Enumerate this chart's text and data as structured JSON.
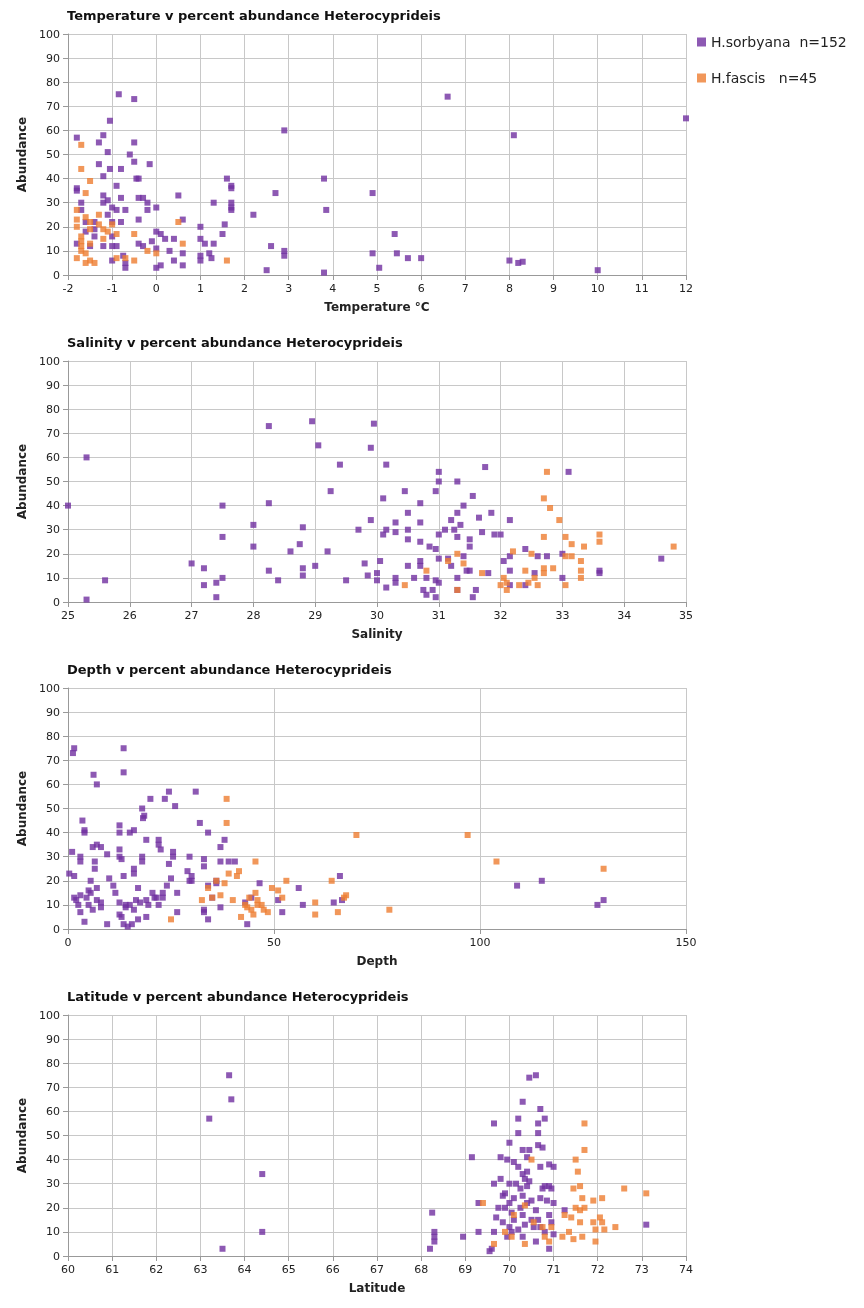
{
  "chart_data": [
    {
      "type": "scatter",
      "title": "Temperature v percent abundance Heterocyprideis",
      "xlabel": "Temperature °C",
      "ylabel": "Abundance",
      "xlim": [
        -2,
        12
      ],
      "xticks": [
        -2,
        -1,
        0,
        1,
        2,
        3,
        4,
        5,
        6,
        7,
        8,
        9,
        10,
        11,
        12
      ],
      "ylim": [
        0,
        100
      ],
      "yticks": [
        0,
        10,
        20,
        30,
        40,
        50,
        60,
        70,
        80,
        90,
        100
      ],
      "grid": true,
      "legend": "top right",
      "marker": "square",
      "series": [
        {
          "name": "H.sorbyana  n=152",
          "color": "#7030a0",
          "x": [
            -1.8,
            -1.8,
            -1.8,
            -1.8,
            -1.7,
            -1.7,
            -1.6,
            -1.6,
            -1.5,
            -1.4,
            -1.4,
            -1.4,
            -1.3,
            -1.3,
            -1.2,
            -1.2,
            -1.2,
            -1.2,
            -1.2,
            -1.1,
            -1.1,
            -1.1,
            -1.05,
            -1.05,
            -1,
            -1,
            -1,
            -1,
            -1,
            -0.9,
            -0.9,
            -0.9,
            -0.85,
            -0.8,
            -0.8,
            -0.8,
            -0.75,
            -0.7,
            -0.7,
            -0.7,
            -0.6,
            -0.5,
            -0.5,
            -0.5,
            -0.45,
            -0.4,
            -0.4,
            -0.4,
            -0.4,
            -0.3,
            -0.3,
            -0.2,
            -0.2,
            -0.15,
            -0.1,
            0,
            0,
            0,
            0,
            0.1,
            0.1,
            0.2,
            0.3,
            0.4,
            0.4,
            0.5,
            0.6,
            0.6,
            0.6,
            1,
            1,
            1,
            1,
            1.1,
            1.2,
            1.25,
            1.3,
            1.3,
            1.5,
            1.55,
            1.6,
            1.7,
            1.7,
            1.7,
            1.7,
            1.7,
            2.2,
            2.6,
            2.5,
            2.7,
            2.9,
            2.9,
            2.9,
            3.8,
            3.85,
            3.8,
            4.9,
            4.9,
            5.05,
            5.4,
            5.45,
            5.7,
            6,
            6.6,
            8,
            8.1,
            8.2,
            8.3,
            10,
            12
          ],
          "values": [
            57,
            36,
            35,
            13,
            30,
            27,
            22,
            18,
            12,
            22,
            19,
            16,
            55,
            46,
            58,
            41,
            33,
            30,
            12,
            51,
            31,
            25,
            64,
            44,
            28,
            22,
            16,
            12,
            6,
            37,
            27,
            12,
            75,
            32,
            44,
            22,
            8,
            27,
            5,
            3,
            50,
            73,
            55,
            47,
            40,
            40,
            32,
            23,
            13,
            32,
            12,
            30,
            27,
            46,
            14,
            28,
            18,
            11,
            3,
            17,
            4,
            15,
            10,
            15,
            6,
            33,
            23,
            4,
            9,
            20,
            15,
            8,
            6,
            13,
            9,
            7,
            30,
            13,
            17,
            21,
            40,
            37,
            36,
            30,
            28,
            27,
            25,
            12,
            2,
            34,
            60,
            10,
            8,
            40,
            27,
            1,
            34,
            9,
            3,
            17,
            9,
            7,
            7,
            74,
            6,
            58,
            5,
            5.5,
            2,
            65
          ]
        },
        {
          "name": "H.fascis   n=45",
          "color": "#ed7d31",
          "x": [
            -1.7,
            -1.7,
            -1.6,
            -1.5,
            -1.8,
            -1.8,
            -1.8,
            -1.7,
            -1.7,
            -1.7,
            -1.7,
            -1.8,
            -1.6,
            -1.6,
            -1.6,
            -1.5,
            -1.5,
            -1.5,
            -1.5,
            -1.4,
            -1.3,
            -1.3,
            -1.2,
            -1.2,
            -1.1,
            -1,
            -0.9,
            -0.9,
            -0.7,
            -0.5,
            -0.5,
            -0.2,
            0,
            0.5,
            0.6,
            1.6
          ],
          "values": [
            54,
            44,
            34,
            39,
            27,
            23,
            20,
            16,
            14,
            12,
            10,
            7,
            24,
            9,
            5,
            22,
            19,
            13,
            6,
            5,
            25,
            21,
            19,
            15,
            18,
            21,
            17,
            7,
            7,
            17,
            6,
            10,
            9,
            22,
            13,
            6
          ]
        }
      ]
    },
    {
      "type": "scatter",
      "title": "Salinity v percent abundance Heterocyprideis",
      "xlabel": "Salinity",
      "ylabel": "Abundance",
      "xlim": [
        25,
        35
      ],
      "xticks": [
        25,
        26,
        27,
        28,
        29,
        30,
        31,
        32,
        33,
        34,
        35
      ],
      "ylim": [
        0,
        100
      ],
      "yticks": [
        0,
        10,
        20,
        30,
        40,
        50,
        60,
        70,
        80,
        90,
        100
      ],
      "grid": true,
      "marker": "square",
      "series": [
        {
          "color": "#7030a0",
          "x": [
            25,
            25.3,
            25.3,
            25.6,
            27,
            27.2,
            27.2,
            27.4,
            27.4,
            27.5,
            27.5,
            27.5,
            28,
            28,
            28.25,
            28.25,
            28.25,
            28.4,
            28.6,
            28.75,
            28.8,
            28.8,
            28.8,
            28.95,
            29,
            29.05,
            29.2,
            29.25,
            29.4,
            29.5,
            29.7,
            29.8,
            29.85,
            29.9,
            29.9,
            29.95,
            30,
            30,
            30.05,
            30.1,
            30.1,
            30.15,
            30.15,
            30.15,
            30.3,
            30.3,
            30.3,
            30.3,
            30.45,
            30.5,
            30.5,
            30.5,
            30.5,
            30.6,
            30.7,
            30.7,
            30.7,
            30.7,
            30.7,
            30.75,
            30.8,
            30.8,
            30.85,
            30.9,
            30.95,
            30.95,
            30.95,
            30.95,
            31,
            31,
            31,
            31,
            31,
            31.1,
            31.15,
            31.2,
            31.2,
            31.25,
            31.3,
            31.3,
            31.3,
            31.3,
            31.3,
            31.35,
            31.4,
            31.4,
            31.45,
            31.5,
            31.5,
            31.5,
            31.55,
            31.55,
            31.6,
            31.65,
            31.7,
            31.75,
            31.8,
            31.85,
            31.9,
            32,
            32.05,
            32.15,
            32.15,
            32.15,
            32.15,
            32.4,
            32.4,
            32.55,
            32.6,
            32.75,
            33,
            33,
            33.1,
            33.6,
            33.6,
            34.6
          ],
          "values": [
            40,
            60,
            1,
            9,
            16,
            14,
            7,
            8,
            2,
            40,
            27,
            10,
            32,
            23,
            73,
            41,
            13,
            9,
            21,
            24,
            31,
            14,
            11,
            75,
            15,
            65,
            21,
            46,
            57,
            9,
            30,
            16,
            11,
            64,
            34,
            74,
            12,
            9,
            17,
            43,
            28,
            57,
            30,
            6,
            33,
            29,
            10,
            8,
            46,
            37,
            30,
            26,
            15,
            10,
            41,
            33,
            25,
            17,
            15,
            5,
            10,
            3,
            23,
            5,
            46,
            22,
            9,
            2,
            28,
            18,
            8,
            54,
            50,
            30,
            18,
            34,
            15,
            30,
            50,
            37,
            27,
            10,
            5,
            32,
            40,
            19,
            13,
            26,
            23,
            13,
            44,
            2,
            5,
            35,
            29,
            56,
            12,
            37,
            28,
            28,
            17,
            34,
            19,
            13,
            7,
            22,
            7,
            12,
            19,
            19,
            20,
            10,
            54,
            13,
            12,
            18
          ]
        },
        {
          "color": "#ed7d31",
          "x": [
            30.45,
            30.8,
            31.15,
            31.3,
            31.3,
            31.4,
            31.7,
            32,
            32.05,
            32.1,
            32.1,
            32.2,
            32.3,
            32.4,
            32.45,
            32.5,
            32.55,
            32.6,
            32.7,
            32.7,
            32.7,
            32.7,
            32.75,
            32.8,
            32.85,
            32.95,
            33.05,
            33.05,
            33.05,
            33.15,
            33.15,
            33.3,
            33.3,
            33.3,
            33.35,
            33.6,
            33.6,
            34.8
          ],
          "values": [
            7,
            13,
            17,
            20,
            5,
            16,
            12,
            7,
            10,
            8,
            5,
            21,
            7,
            13,
            8,
            20,
            10,
            7,
            43,
            27,
            14,
            12,
            54,
            39,
            14,
            34,
            27,
            19,
            7,
            24,
            19,
            17,
            13,
            10,
            23,
            28,
            25,
            23
          ]
        }
      ]
    },
    {
      "type": "scatter",
      "title": "Depth v percent abundance Heterocyprideis",
      "xlabel": "Depth",
      "ylabel": "Abundance",
      "xlim": [
        0,
        150
      ],
      "xticks": [
        0,
        50,
        100,
        150
      ],
      "ylim": [
        0,
        100
      ],
      "yticks": [
        0,
        10,
        20,
        30,
        40,
        50,
        60,
        70,
        80,
        90,
        100
      ],
      "grid": true,
      "marker": "square",
      "series": [
        {
          "color": "#7030a0",
          "x": [
            0.3,
            1,
            1.2,
            1.5,
            1.5,
            1.5,
            2,
            2.5,
            3,
            3,
            3,
            3,
            3.5,
            4,
            4,
            4,
            4.5,
            5,
            5,
            5.5,
            5.5,
            6,
            6,
            6.2,
            6.5,
            6.5,
            7,
            7,
            7,
            7,
            8,
            8,
            8,
            9.5,
            9.5,
            10,
            11,
            11.5,
            12.5,
            12.5,
            12.5,
            12.5,
            12.5,
            12.5,
            13,
            13,
            13.5,
            13.5,
            13.5,
            13.5,
            14,
            14,
            14.5,
            15,
            15,
            15.5,
            16,
            16,
            16,
            16,
            16.5,
            17,
            17,
            17.5,
            18,
            18,
            18,
            18.2,
            18.5,
            19,
            19,
            19,
            19.5,
            20,
            20.5,
            21,
            21.5,
            22,
            22,
            22,
            22.5,
            23,
            23,
            23.5,
            24,
            24.5,
            24.5,
            25,
            25.5,
            25.5,
            26,
            26.5,
            26.5,
            29,
            29.5,
            29.5,
            30,
            30,
            31,
            32,
            33,
            33,
            33,
            33,
            34,
            34,
            34,
            35,
            36,
            36,
            37,
            37,
            37,
            38,
            39,
            40.5,
            43,
            43.5,
            44.5,
            46.5,
            51,
            52,
            56,
            57,
            64.5,
            66,
            66.5,
            109,
            115,
            128.5,
            130
          ],
          "values": [
            23,
            32,
            73,
            75,
            22,
            13,
            12,
            10,
            30,
            28,
            14,
            7,
            45,
            41,
            40,
            3,
            13,
            16,
            10,
            20,
            15,
            34,
            8,
            64,
            28,
            25,
            60,
            35,
            17,
            12,
            34,
            11,
            9,
            31,
            2,
            21,
            18,
            15,
            43,
            40,
            33,
            30,
            11,
            6,
            29,
            5,
            2,
            75,
            65,
            22,
            10,
            9,
            1,
            40,
            10,
            2,
            41,
            25,
            23,
            8,
            12,
            17,
            4,
            11,
            30,
            28,
            50,
            46,
            47,
            37,
            12,
            5,
            10,
            54,
            15,
            13,
            13,
            37,
            35,
            10,
            33,
            15,
            13,
            54,
            18,
            57,
            27,
            21,
            32,
            30,
            51,
            15,
            7,
            24,
            30,
            20,
            22,
            20,
            57,
            44,
            29,
            26,
            8,
            7,
            40,
            18,
            4,
            13,
            20,
            19,
            34,
            28,
            9,
            37,
            28,
            28,
            11,
            2,
            13,
            19,
            12,
            7,
            17,
            10,
            11,
            22,
            12,
            18,
            20,
            10,
            12
          ]
        },
        {
          "color": "#ed7d31",
          "x": [
            25,
            32.5,
            34,
            35,
            36,
            37,
            38,
            38.5,
            38.5,
            39,
            40,
            41,
            41.5,
            42,
            43,
            43.5,
            44,
            44.5,
            45,
            45.5,
            45.5,
            46,
            46,
            47,
            47.5,
            48.5,
            49.5,
            51,
            52,
            53,
            60,
            60,
            64,
            65.5,
            67,
            67.5,
            70,
            78,
            97,
            104,
            130
          ],
          "values": [
            4,
            12,
            17,
            13,
            20,
            14,
            19,
            54,
            44,
            23,
            12,
            22,
            24,
            5,
            10,
            9,
            13,
            8,
            6,
            28,
            15,
            12,
            10,
            10,
            8,
            7,
            17,
            16,
            13,
            20,
            11,
            6,
            20,
            7,
            13,
            14,
            39,
            8,
            39,
            28,
            25
          ]
        }
      ]
    },
    {
      "type": "scatter",
      "title": "Latitude v percent abundance Heterocyprideis",
      "xlabel": "Latitude",
      "ylabel": "Abundance",
      "xlim": [
        60,
        74
      ],
      "xticks": [
        60,
        61,
        62,
        63,
        64,
        65,
        66,
        67,
        68,
        69,
        70,
        71,
        72,
        73,
        74
      ],
      "ylim": [
        0,
        100
      ],
      "yticks": [
        0,
        10,
        20,
        30,
        40,
        50,
        60,
        70,
        80,
        90,
        100
      ],
      "grid": true,
      "marker": "square",
      "series": [
        {
          "color": "#7030a0",
          "x": [
            63.2,
            63.5,
            63.65,
            63.7,
            64.4,
            64.4,
            68.2,
            68.25,
            68.3,
            68.3,
            68.3,
            68.95,
            69.15,
            69.3,
            69.3,
            69.55,
            69.6,
            69.65,
            69.65,
            69.65,
            69.7,
            69.75,
            69.8,
            69.8,
            69.85,
            69.85,
            69.9,
            69.9,
            69.95,
            69.95,
            70,
            70,
            70,
            70,
            70.05,
            70.05,
            70.1,
            70.1,
            70.1,
            70.15,
            70.2,
            70.2,
            70.2,
            70.2,
            70.25,
            70.25,
            70.3,
            70.3,
            70.3,
            70.3,
            70.3,
            70.3,
            70.35,
            70.35,
            70.4,
            70.4,
            70.4,
            70.4,
            70.45,
            70.45,
            70.45,
            70.5,
            70.5,
            70.55,
            70.6,
            70.6,
            70.6,
            70.65,
            70.65,
            70.65,
            70.65,
            70.7,
            70.7,
            70.7,
            70.7,
            70.75,
            70.75,
            70.8,
            70.8,
            70.8,
            70.85,
            70.9,
            70.9,
            70.9,
            70.9,
            70.95,
            70.95,
            71,
            71,
            71,
            71.25,
            73.1
          ],
          "values": [
            57,
            3,
            75,
            65,
            34,
            10,
            3,
            18,
            10,
            8,
            6,
            8,
            41,
            22,
            10,
            2,
            3,
            55,
            30,
            10,
            16,
            20,
            41,
            32,
            25,
            14,
            26,
            20,
            40,
            8,
            47,
            30,
            22,
            12,
            18,
            10,
            39,
            24,
            15,
            30,
            57,
            51,
            37,
            11,
            28,
            20,
            64,
            44,
            34,
            25,
            17,
            8,
            32,
            13,
            41,
            35,
            29,
            22,
            74,
            44,
            31,
            23,
            15,
            12,
            75,
            19,
            6,
            55,
            51,
            46,
            15,
            61,
            37,
            24,
            12,
            45,
            28,
            57,
            29,
            10,
            23,
            38,
            29,
            17,
            3,
            28,
            14,
            37,
            22,
            9,
            19,
            13
          ]
        },
        {
          "color": "#ed7d31",
          "x": [
            69.4,
            69.65,
            69.9,
            70.1,
            70.05,
            70.35,
            70.35,
            70.5,
            70.55,
            70.75,
            70.8,
            70.9,
            70.95,
            71.2,
            71.25,
            71.35,
            71.4,
            71.45,
            71.45,
            71.5,
            71.5,
            71.55,
            71.6,
            71.6,
            71.6,
            71.65,
            71.65,
            71.7,
            71.7,
            71.7,
            71.9,
            71.9,
            71.95,
            71.95,
            72.05,
            72.1,
            72.1,
            72.15,
            72.4,
            72.6,
            73.1
          ],
          "values": [
            22,
            5,
            10,
            17,
            8,
            21,
            5,
            40,
            14,
            12,
            8,
            6,
            12,
            8,
            17,
            10,
            16,
            28,
            7,
            40,
            20,
            35,
            29,
            19,
            14,
            24,
            8,
            55,
            44,
            20,
            23,
            14,
            6,
            11,
            16,
            24,
            14,
            11,
            12,
            28,
            26
          ]
        }
      ]
    }
  ]
}
